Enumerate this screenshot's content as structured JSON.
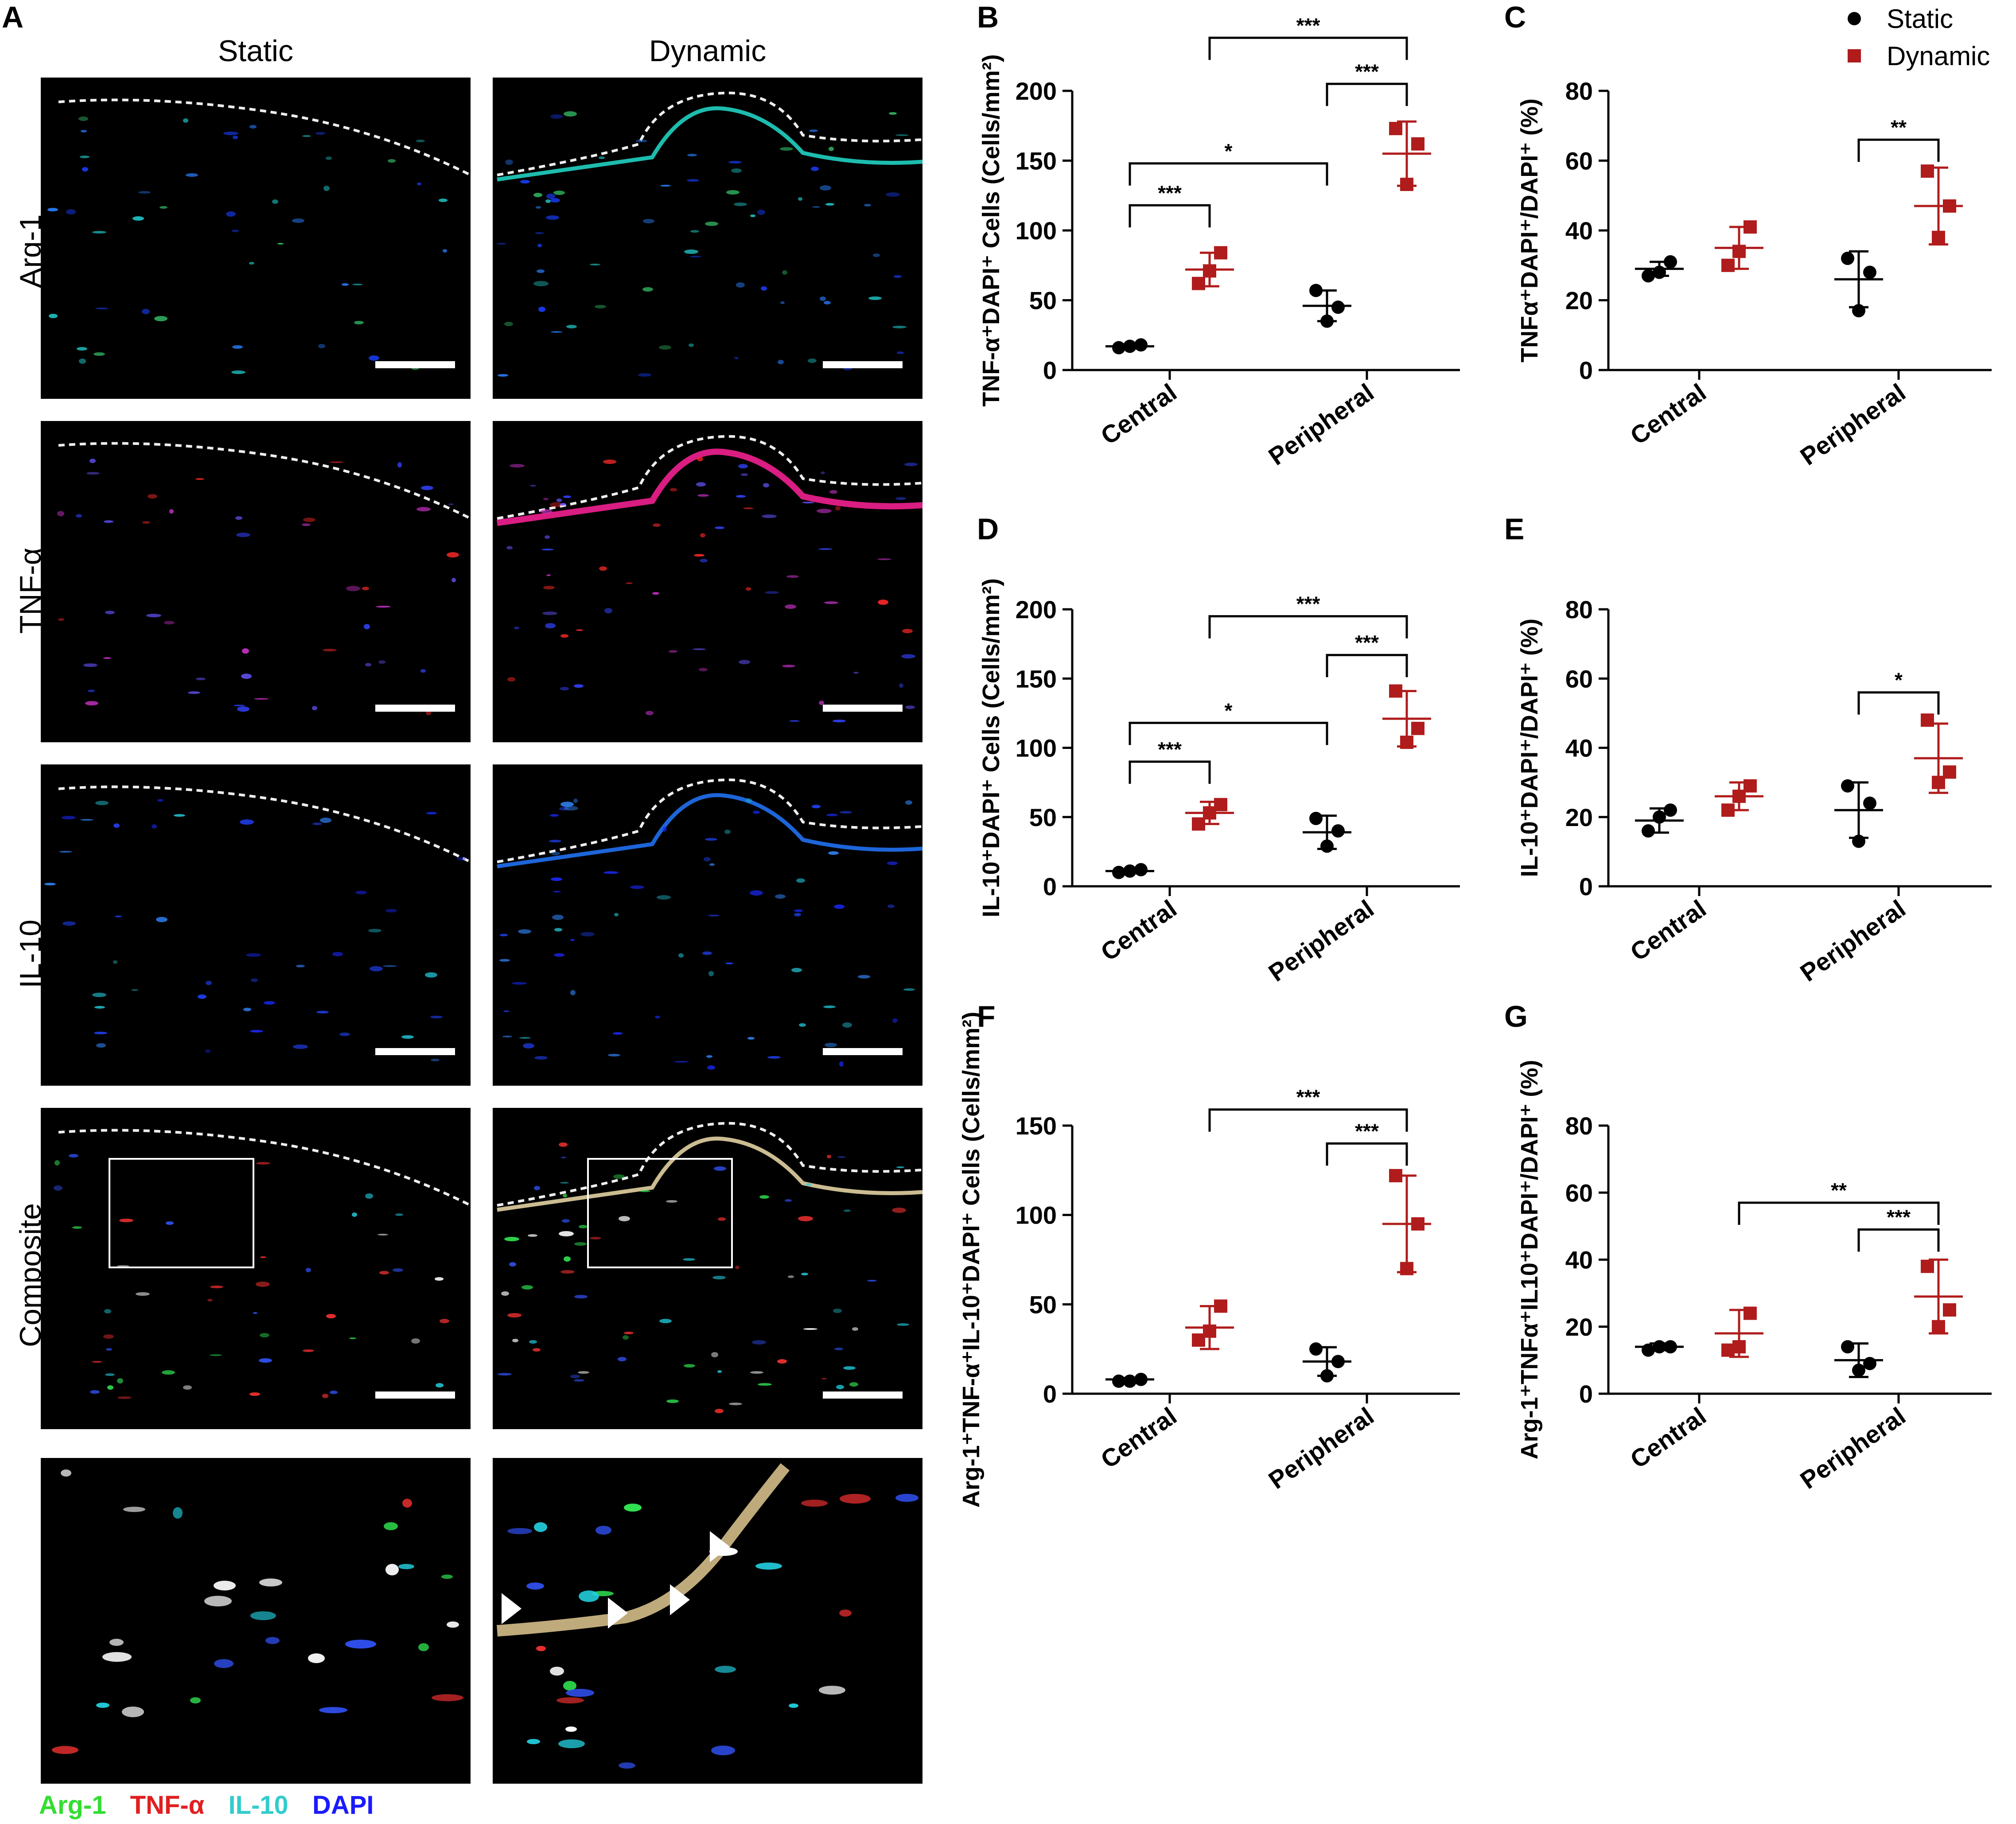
{
  "panel_a": {
    "letter": "A",
    "columns": [
      "Static",
      "Dynamic"
    ],
    "rows": [
      "Arg-1",
      "TNF-α",
      "IL-10",
      "Composite"
    ],
    "channel_legend": [
      {
        "label": "Arg-1",
        "color": "#33dd33"
      },
      {
        "label": "TNF-α",
        "color": "#e02020"
      },
      {
        "label": "IL-10",
        "color": "#33cccc"
      },
      {
        "label": "DAPI",
        "color": "#1a1aff"
      }
    ]
  },
  "series_legend": {
    "static": {
      "label": "Static",
      "color": "#000000",
      "marker": "circle"
    },
    "dynamic": {
      "label": "Dynamic",
      "color": "#b01c1c",
      "marker": "square"
    }
  },
  "chart_data": [
    {
      "id": "B",
      "type": "scatter",
      "ylabel": "TNF-α⁺DAPI⁺ Cells (Cells/mm²)",
      "categories": [
        "Central",
        "Peripheral"
      ],
      "ylim": [
        0,
        200
      ],
      "yticks": [
        0,
        50,
        100,
        150,
        200
      ],
      "series": [
        {
          "name": "Static",
          "points": [
            [
              16,
              17,
              18
            ],
            [
              35,
              45,
              57
            ]
          ],
          "mean": [
            17,
            46
          ],
          "sd": [
            1.5,
            11
          ]
        },
        {
          "name": "Dynamic",
          "points": [
            [
              62,
              71,
              84
            ],
            [
              133,
              162,
              173
            ]
          ],
          "mean": [
            72,
            155
          ],
          "sd": [
            12,
            23
          ]
        }
      ],
      "significance": [
        {
          "from": [
            0,
            0
          ],
          "to": [
            0,
            1
          ],
          "label": "***",
          "y": 118
        },
        {
          "from": [
            0,
            0
          ],
          "to": [
            1,
            0
          ],
          "label": "*",
          "y": 148
        },
        {
          "from": [
            1,
            0
          ],
          "to": [
            1,
            1
          ],
          "label": "***",
          "y": 205
        },
        {
          "from": [
            0,
            1
          ],
          "to": [
            1,
            1
          ],
          "label": "***",
          "y": 238
        }
      ]
    },
    {
      "id": "C",
      "type": "scatter",
      "ylabel": "TNFα⁺DAPI⁺/DAPI⁺ (%)",
      "categories": [
        "Central",
        "Peripheral"
      ],
      "ylim": [
        0,
        80
      ],
      "yticks": [
        0,
        20,
        40,
        60,
        80
      ],
      "series": [
        {
          "name": "Static",
          "points": [
            [
              27,
              28,
              31
            ],
            [
              17,
              28,
              32
            ]
          ],
          "mean": [
            29,
            26
          ],
          "sd": [
            2,
            8
          ]
        },
        {
          "name": "Dynamic",
          "points": [
            [
              30,
              34,
              41
            ],
            [
              38,
              47,
              57
            ]
          ],
          "mean": [
            35,
            47
          ],
          "sd": [
            6,
            11
          ]
        }
      ],
      "significance": [
        {
          "from": [
            1,
            0
          ],
          "to": [
            1,
            1
          ],
          "label": "**",
          "y": 66
        }
      ]
    },
    {
      "id": "D",
      "type": "scatter",
      "ylabel": "IL-10⁺DAPI⁺ Cells (Cells/mm²)",
      "categories": [
        "Central",
        "Peripheral"
      ],
      "ylim": [
        0,
        200
      ],
      "yticks": [
        0,
        50,
        100,
        150,
        200
      ],
      "series": [
        {
          "name": "Static",
          "points": [
            [
              10,
              11,
              12
            ],
            [
              29,
              40,
              49
            ]
          ],
          "mean": [
            11,
            39
          ],
          "sd": [
            1,
            12
          ]
        },
        {
          "name": "Dynamic",
          "points": [
            [
              45,
              53,
              59
            ],
            [
              104,
              114,
              141
            ]
          ],
          "mean": [
            53,
            121
          ],
          "sd": [
            8,
            20
          ]
        }
      ],
      "significance": [
        {
          "from": [
            0,
            0
          ],
          "to": [
            0,
            1
          ],
          "label": "***",
          "y": 90
        },
        {
          "from": [
            0,
            0
          ],
          "to": [
            1,
            0
          ],
          "label": "*",
          "y": 118
        },
        {
          "from": [
            1,
            0
          ],
          "to": [
            1,
            1
          ],
          "label": "***",
          "y": 167
        },
        {
          "from": [
            0,
            1
          ],
          "to": [
            1,
            1
          ],
          "label": "***",
          "y": 195
        }
      ]
    },
    {
      "id": "E",
      "type": "scatter",
      "ylabel": "IL-10⁺DAPI⁺/DAPI⁺ (%)",
      "categories": [
        "Central",
        "Peripheral"
      ],
      "ylim": [
        0,
        80
      ],
      "yticks": [
        0,
        20,
        40,
        60,
        80
      ],
      "series": [
        {
          "name": "Static",
          "points": [
            [
              16,
              20,
              22
            ],
            [
              13,
              24,
              29
            ]
          ],
          "mean": [
            19,
            22
          ],
          "sd": [
            3.5,
            8
          ]
        },
        {
          "name": "Dynamic",
          "points": [
            [
              22,
              26,
              29
            ],
            [
              30,
              33,
              48
            ]
          ],
          "mean": [
            26,
            37
          ],
          "sd": [
            4,
            10
          ]
        }
      ],
      "significance": [
        {
          "from": [
            1,
            0
          ],
          "to": [
            1,
            1
          ],
          "label": "*",
          "y": 56
        }
      ]
    },
    {
      "id": "F",
      "type": "scatter",
      "ylabel": "Arg-1⁺TNF-α⁺IL-10⁺DAPI⁺ Cells (Cells/mm²)",
      "categories": [
        "Central",
        "Peripheral"
      ],
      "ylim": [
        0,
        150
      ],
      "yticks": [
        0,
        50,
        100,
        150
      ],
      "series": [
        {
          "name": "Static",
          "points": [
            [
              7,
              7,
              8
            ],
            [
              10,
              18,
              25
            ]
          ],
          "mean": [
            8,
            18
          ],
          "sd": [
            0.8,
            8
          ]
        },
        {
          "name": "Dynamic",
          "points": [
            [
              30,
              35,
              49
            ],
            [
              70,
              95,
              122
            ]
          ],
          "mean": [
            37,
            95
          ],
          "sd": [
            12,
            27
          ]
        }
      ],
      "significance": [
        {
          "from": [
            1,
            0
          ],
          "to": [
            1,
            1
          ],
          "label": "***",
          "y": 140
        },
        {
          "from": [
            0,
            1
          ],
          "to": [
            1,
            1
          ],
          "label": "***",
          "y": 159
        }
      ]
    },
    {
      "id": "G",
      "type": "scatter",
      "ylabel": "Arg-1⁺TNFα⁺IL10⁺DAPI⁺/DAPI⁺ (%)",
      "categories": [
        "Central",
        "Peripheral"
      ],
      "ylim": [
        0,
        80
      ],
      "yticks": [
        0,
        20,
        40,
        60,
        80
      ],
      "series": [
        {
          "name": "Static",
          "points": [
            [
              13,
              14,
              14
            ],
            [
              7,
              9,
              14
            ]
          ],
          "mean": [
            14,
            10
          ],
          "sd": [
            1,
            5
          ]
        },
        {
          "name": "Dynamic",
          "points": [
            [
              13,
              14,
              24
            ],
            [
              20,
              25,
              38
            ]
          ],
          "mean": [
            18,
            29
          ],
          "sd": [
            7,
            11
          ]
        }
      ],
      "significance": [
        {
          "from": [
            1,
            0
          ],
          "to": [
            1,
            1
          ],
          "label": "***",
          "y": 49
        },
        {
          "from": [
            0,
            1
          ],
          "to": [
            1,
            1
          ],
          "label": "**",
          "y": 57
        }
      ]
    }
  ]
}
